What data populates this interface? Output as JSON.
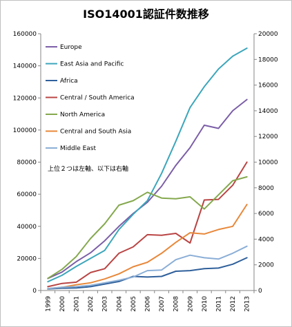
{
  "chart_data": {
    "type": "line",
    "title": "ISO14001認証件数推移",
    "x": [
      "1999",
      "2000",
      "2001",
      "2002",
      "2003",
      "2004",
      "2005",
      "2006",
      "2007",
      "2008",
      "2009",
      "2010",
      "2011",
      "2012",
      "2013"
    ],
    "ylim_left": [
      0,
      160000
    ],
    "yticks_left": [
      0,
      20000,
      40000,
      60000,
      80000,
      100000,
      120000,
      140000,
      160000
    ],
    "ylim_right": [
      0,
      20000
    ],
    "yticks_right": [
      0,
      2000,
      4000,
      6000,
      8000,
      10000,
      12000,
      14000,
      16000,
      18000,
      20000
    ],
    "grid": false,
    "legend_position": "left-upper",
    "annotation": "上位２つは左軸、以下は右軸",
    "series": [
      {
        "name": "Europe",
        "axis": "left",
        "color": "#7b5ea7",
        "values": [
          7500,
          11500,
          18000,
          23500,
          31000,
          40000,
          48000,
          55000,
          65000,
          78000,
          89000,
          103000,
          101000,
          112000,
          119000
        ]
      },
      {
        "name": "East Asia and Pacific",
        "axis": "left",
        "color": "#3ca6bb",
        "values": [
          5500,
          9500,
          15000,
          20000,
          25000,
          38000,
          47500,
          56000,
          73000,
          93000,
          114000,
          127000,
          138000,
          146000,
          151000
        ]
      },
      {
        "name": "Africa",
        "axis": "right",
        "color": "#2e5f9a",
        "values": [
          120,
          180,
          200,
          300,
          500,
          700,
          1100,
          1050,
          1100,
          1500,
          1550,
          1700,
          1750,
          2050,
          2550
        ]
      },
      {
        "name": "Central / South America",
        "axis": "right",
        "color": "#b94443",
        "values": [
          300,
          550,
          650,
          1400,
          1700,
          2900,
          3400,
          4350,
          4300,
          4450,
          3700,
          7050,
          7100,
          8200,
          10000
        ]
      },
      {
        "name": "North America",
        "axis": "right",
        "color": "#84a84d",
        "values": [
          950,
          1650,
          2650,
          4050,
          5200,
          6650,
          7000,
          7650,
          7200,
          7150,
          7300,
          6350,
          7450,
          8550,
          8850
        ]
      },
      {
        "name": "Central and South Asia",
        "axis": "right",
        "color": "#e8883a",
        "values": [
          150,
          250,
          450,
          600,
          900,
          1300,
          1850,
          2200,
          2900,
          3750,
          4500,
          4400,
          4750,
          5000,
          6700
        ]
      },
      {
        "name": "Middle East",
        "axis": "right",
        "color": "#8aaed6",
        "values": [
          150,
          250,
          300,
          400,
          600,
          800,
          1050,
          1550,
          1600,
          2400,
          2750,
          2550,
          2450,
          2900,
          3450
        ]
      }
    ]
  }
}
